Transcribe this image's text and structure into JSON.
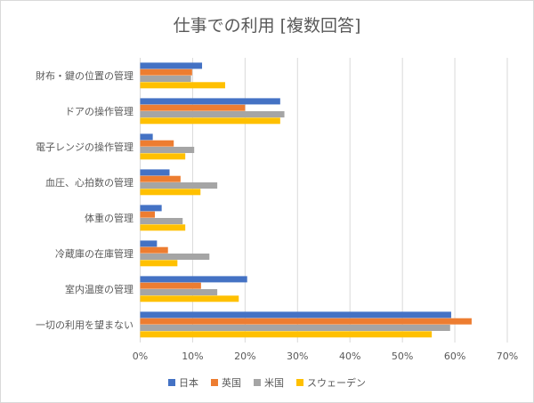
{
  "chart_data": {
    "type": "bar",
    "orientation": "horizontal",
    "title": "仕事での利用 [複数回答]",
    "categories": [
      "財布・鍵の位置の管理",
      "ドアの操作管理",
      "電子レンジの操作管理",
      "血圧、心拍数の管理",
      "体重の管理",
      "冷蔵庫の在庫管理",
      "室内温度の管理",
      "一切の利用を望まない"
    ],
    "series": [
      {
        "name": "日本",
        "color": "#4472c4",
        "values": [
          11.8,
          26.7,
          2.4,
          5.6,
          4.1,
          3.2,
          20.4,
          59.3
        ]
      },
      {
        "name": "英国",
        "color": "#ed7d31",
        "values": [
          9.9,
          20.0,
          6.4,
          7.7,
          2.8,
          5.3,
          11.6,
          63.2
        ]
      },
      {
        "name": "米国",
        "color": "#a5a5a5",
        "values": [
          9.7,
          27.5,
          10.3,
          14.7,
          8.1,
          13.2,
          14.7,
          59.1
        ]
      },
      {
        "name": "スウェーデン",
        "color": "#ffc000",
        "values": [
          16.2,
          26.7,
          8.6,
          11.5,
          8.6,
          7.1,
          18.8,
          55.6
        ]
      }
    ],
    "xlim": [
      0,
      70
    ],
    "xticks": [
      "0%",
      "10%",
      "20%",
      "30%",
      "40%",
      "50%",
      "60%",
      "70%"
    ],
    "grid": true,
    "legend": "bottom"
  }
}
